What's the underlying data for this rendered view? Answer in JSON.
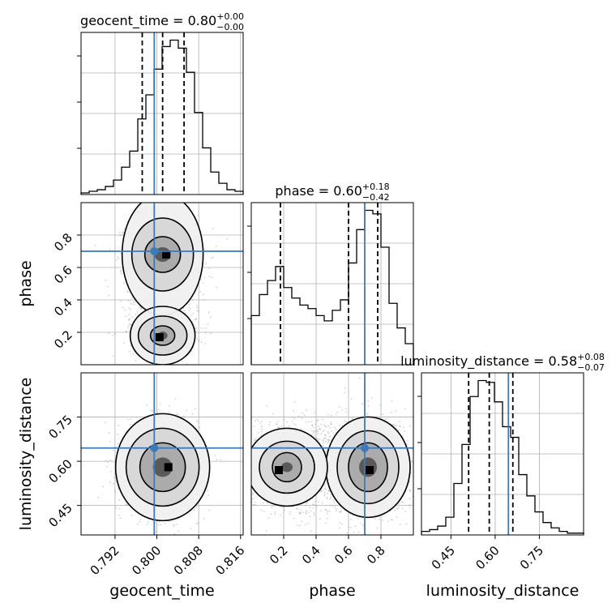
{
  "chart_data": {
    "type": "corner",
    "parameters": [
      "geocent_time",
      "phase",
      "luminosity_distance"
    ],
    "titles": [
      {
        "param": "geocent_time",
        "main": "geocent_time = 0.80",
        "plus": "+0.00",
        "minus": "−0.00"
      },
      {
        "param": "phase",
        "main": "phase = 0.60",
        "plus": "+0.18",
        "minus": "−0.42"
      },
      {
        "param": "luminosity_distance",
        "main": "luminosity_distance = 0.58",
        "plus": "+0.08",
        "minus": "−0.07"
      }
    ],
    "axes": {
      "geocent_time": {
        "range": [
          0.7855,
          0.8165
        ],
        "ticks": [
          0.792,
          0.8,
          0.808,
          0.816
        ],
        "tick_labels": [
          "0.792",
          "0.800",
          "0.808",
          "0.816"
        ]
      },
      "phase": {
        "range": [
          0.0,
          1.0
        ],
        "ticks": [
          0.2,
          0.4,
          0.6,
          0.8
        ],
        "tick_labels": [
          "0.2",
          "0.4",
          "0.6",
          "0.8"
        ]
      },
      "luminosity_distance": {
        "range": [
          0.35,
          0.9
        ],
        "ticks": [
          0.45,
          0.6,
          0.75
        ],
        "tick_labels": [
          "0.45",
          "0.60",
          "0.75"
        ]
      }
    },
    "injection": {
      "geocent_time": 0.7995,
      "phase": 0.7,
      "luminosity_distance": 0.645
    },
    "quantiles": {
      "geocent_time": [
        0.7972,
        0.8011,
        0.8052
      ],
      "phase": [
        0.18,
        0.6,
        0.78
      ],
      "luminosity_distance": [
        0.51,
        0.58,
        0.66
      ]
    },
    "histograms": {
      "geocent_time": {
        "edges_start": 0.7855,
        "bin_width": 0.00155,
        "counts": [
          1,
          2,
          3,
          5,
          9,
          17,
          27,
          47,
          62,
          78,
          92,
          96,
          91,
          76,
          51,
          29,
          14,
          7,
          3,
          2
        ]
      },
      "phase": {
        "edges_start": 0.0,
        "bin_width": 0.05,
        "counts": [
          28,
          40,
          48,
          56,
          44,
          38,
          34,
          32,
          28,
          25,
          31,
          37,
          58,
          77,
          88,
          86,
          67,
          35,
          21,
          12
        ]
      },
      "luminosity_distance": {
        "edges_start": 0.35,
        "bin_width": 0.0275,
        "counts": [
          2,
          3,
          5,
          10,
          29,
          51,
          78,
          87,
          86,
          75,
          61,
          55,
          34,
          22,
          13,
          7,
          4,
          2,
          1,
          1
        ]
      }
    },
    "grid": true
  }
}
